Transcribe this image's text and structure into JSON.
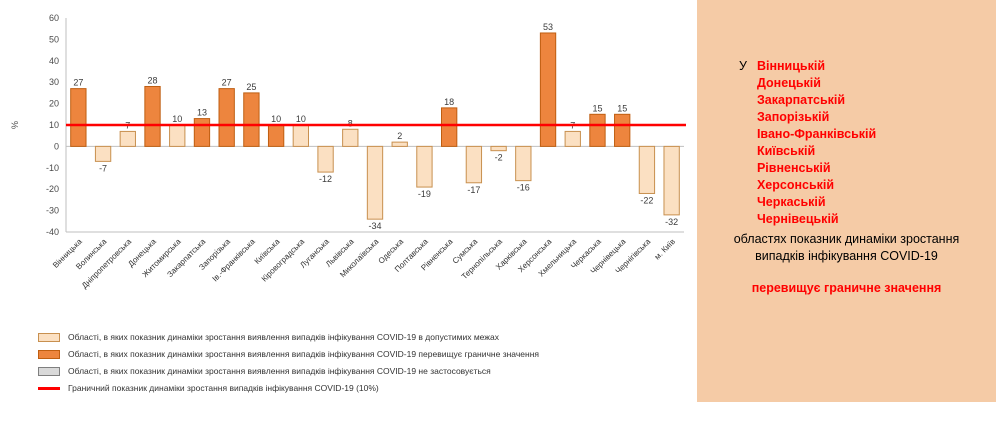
{
  "chart_data": {
    "type": "bar",
    "title": "",
    "ylabel": "%",
    "ylim": [
      -40,
      60
    ],
    "yticks": [
      60,
      50,
      40,
      30,
      20,
      10,
      0,
      -10,
      -20,
      -30,
      -40
    ],
    "categories": [
      "Вінницька",
      "Волинська",
      "Дніпропетровська",
      "Донецька",
      "Житомирська",
      "Закарпатська",
      "Запорізька",
      "Ів.-Франківська",
      "Київська",
      "Кіровоградська",
      "Луганська",
      "Львівська",
      "Миколаївська",
      "Одеська",
      "Полтавська",
      "Рівненська",
      "Сумська",
      "Тернопільська",
      "Харківська",
      "Херсонська",
      "Хмельницька",
      "Черкаська",
      "Чернівецька",
      "Чернігівська",
      "м. Київ"
    ],
    "values": [
      27,
      -7,
      7,
      28,
      10,
      13,
      27,
      25,
      10,
      10,
      -12,
      8,
      -34,
      2,
      -19,
      18,
      -17,
      -2,
      -16,
      53,
      7,
      15,
      15,
      -22,
      -32
    ],
    "statuses": [
      "exceeds",
      "within",
      "within",
      "exceeds",
      "within",
      "exceeds",
      "exceeds",
      "exceeds",
      "exceeds",
      "within",
      "within",
      "within",
      "within",
      "within",
      "within",
      "exceeds",
      "within",
      "within",
      "within",
      "exceeds",
      "within",
      "exceeds",
      "exceeds",
      "within",
      "within"
    ],
    "threshold": {
      "value": 10,
      "label": "Граничний показник динаміки зростання випадків інфікування COVID-19 (10%)"
    },
    "colors": {
      "exceeds_fill": "#ED853E",
      "exceeds_stroke": "#BF5E11",
      "within_fill": "#FBE0C2",
      "within_stroke": "#C8904F",
      "na_fill": "#D9D9D9",
      "na_stroke": "#7F7F7F",
      "threshold": "#FF0000"
    }
  },
  "legend": {
    "items": [
      {
        "type": "within",
        "label": "Області, в яких показник динаміки зростання виявлення випадків інфікування COVID-19 в допустимих межах"
      },
      {
        "type": "exceeds",
        "label": "Області, в яких показник динаміки зростання виявлення випадків інфікування COVID-19 перевищує граничне значення"
      },
      {
        "type": "na",
        "label": "Області, в яких показник динаміки зростання виявлення випадків інфікування COVID-19 не застосовується"
      },
      {
        "type": "line",
        "label": "Граничний показник динаміки зростання випадків інфікування COVID-19 (10%)"
      }
    ]
  },
  "panel": {
    "bg": "#F5CBA6",
    "prefix": "У",
    "oblasts": [
      "Вінницькій",
      "Донецькій",
      "Закарпатській",
      "Запорізькій",
      "Івано-Франківській",
      "Київській",
      "Рівненській",
      "Херсонській",
      "Черкаській",
      "Чернівецькій"
    ],
    "note": "областях показник динаміки зростання випадків інфікування COVID-19",
    "conclusion": "перевищує граничне значення"
  }
}
